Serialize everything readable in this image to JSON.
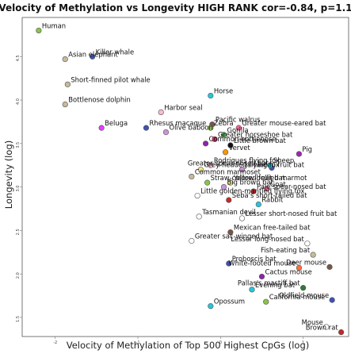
{
  "chart_data": {
    "type": "scatter",
    "title": "ALL Velocity of Methylation vs Longevity HIGH RANK cor=-0.84, p=1.1e-15",
    "xlabel": "Velocity of Methylation of Top 500 Highest CpGs (log)",
    "ylabel": "Longevity (log)",
    "xlim": [
      -2.4,
      1.55
    ],
    "ylim": [
      1.28,
      4.95
    ],
    "x_ticks": [
      -2,
      -1,
      0,
      1
    ],
    "y_ticks": [
      1.5,
      2.0,
      2.5,
      3.0,
      3.5,
      4.0,
      4.5
    ],
    "x_tick_labels": [
      "-2",
      "-1",
      "0",
      "1"
    ],
    "y_tick_labels": [
      "1.5",
      "2.0",
      "2.5",
      "3.0",
      "3.5",
      "4.0",
      "4.5"
    ],
    "grid": false,
    "points": [
      {
        "label": "Human",
        "x": -2.2,
        "y": 4.8,
        "color": "#8bc34a"
      },
      {
        "label": "Killer whale",
        "x": -1.55,
        "y": 4.5,
        "color": "#3f51b5"
      },
      {
        "label": "Asian elephant",
        "x": -1.88,
        "y": 4.47,
        "color": "#c8b99a"
      },
      {
        "label": "Short-finned pilot whale",
        "x": -1.85,
        "y": 4.18,
        "color": "#c8b99a"
      },
      {
        "label": "Bottlenose dolphin",
        "x": -1.88,
        "y": 3.95,
        "color": "#c8b99a"
      },
      {
        "label": "Horse",
        "x": -0.12,
        "y": 4.05,
        "color": "#26c6da"
      },
      {
        "label": "Harbor seal",
        "x": -0.72,
        "y": 3.86,
        "color": "#f8bbd0"
      },
      {
        "label": "Pacific walrus",
        "x": -0.1,
        "y": 3.72,
        "color": "#795548"
      },
      {
        "label": "Beluga",
        "x": -1.44,
        "y": 3.68,
        "color": "#e040fb"
      },
      {
        "label": "Rhesus macaque",
        "x": -0.9,
        "y": 3.68,
        "color": "#3f51b5"
      },
      {
        "label": "Zebra",
        "x": -0.12,
        "y": 3.68,
        "color": "#8bc34a"
      },
      {
        "label": "Greater mouse-eared bat",
        "x": 0.22,
        "y": 3.68,
        "color": "#f06292"
      },
      {
        "label": "Olive baboon",
        "x": -0.66,
        "y": 3.63,
        "color": "#ce93d8"
      },
      {
        "label": "Gorilla",
        "x": 0.04,
        "y": 3.6,
        "color": "#4caf50"
      },
      {
        "label": "Greater horseshoe bat",
        "x": -0.07,
        "y": 3.55,
        "color": "#e91e63"
      },
      {
        "label": "Common bottlenose",
        "x": -0.18,
        "y": 3.5,
        "color": "#8e24aa"
      },
      {
        "label": "Little brown bat",
        "x": 0.12,
        "y": 3.48,
        "color": "#111111"
      },
      {
        "label": "Vervet",
        "x": 0.06,
        "y": 3.4,
        "color": "#ff9800"
      },
      {
        "label": "Pig",
        "x": 0.95,
        "y": 3.38,
        "color": "#9c27b0"
      },
      {
        "label": "Rodrigues flying fox",
        "x": -0.12,
        "y": 3.25,
        "color": "#f8bbd0"
      },
      {
        "label": "Greater spear-nosed bat",
        "x": 0.62,
        "y": 3.22,
        "color": "#3f51b5"
      },
      {
        "label": "Sheep",
        "x": 0.6,
        "y": 3.25,
        "color": "#26c6da"
      },
      {
        "label": "Grey-headed flying fox",
        "x": -0.24,
        "y": 3.2,
        "color": "#f0e68c"
      },
      {
        "label": "Jamaican fruit bat",
        "x": 0.26,
        "y": 3.2,
        "color": "#ce93d8"
      },
      {
        "label": "Common marmoset",
        "x": -0.35,
        "y": 3.12,
        "color": "#c8b99a"
      },
      {
        "label": "Straw-colored fruit bat",
        "x": -0.16,
        "y": 3.05,
        "color": "#8bc34a"
      },
      {
        "label": "Big brown bat",
        "x": 0.04,
        "y": 3.0,
        "color": "#ce93d8"
      },
      {
        "label": "Yellow-bellied marmot",
        "x": 0.12,
        "y": 3.05,
        "color": "#f0e68c"
      },
      {
        "label": "Pale spear-nosed bat",
        "x": 0.4,
        "y": 2.95,
        "color": "#c62828"
      },
      {
        "label": "Goat",
        "x": 0.56,
        "y": 2.98,
        "color": "#f06292"
      },
      {
        "label": "Little golden-mantled flying fox",
        "x": -0.28,
        "y": 2.9,
        "color": "#ffffff"
      },
      {
        "label": "Seba's short-tailed bat",
        "x": 0.1,
        "y": 2.85,
        "color": "#c62828"
      },
      {
        "label": "Rabbit",
        "x": 0.46,
        "y": 2.8,
        "color": "#26c6da"
      },
      {
        "label": "Tasmanian devil",
        "x": -0.26,
        "y": 2.66,
        "color": "#ffffff"
      },
      {
        "label": "Lesser short-nosed fruit bat",
        "x": 0.26,
        "y": 2.64,
        "color": "#ffffff"
      },
      {
        "label": "Mexican free-tailed bat",
        "x": 0.12,
        "y": 2.48,
        "color": "#795548"
      },
      {
        "label": "Greater sac-winged bat",
        "x": -0.35,
        "y": 2.38,
        "color": "#ffffff"
      },
      {
        "label": "Lesser long-nosed bat",
        "x": 1.05,
        "y": 2.35,
        "color": "#ffffff"
      },
      {
        "label": "Fish-eating bat",
        "x": 1.12,
        "y": 2.22,
        "color": "#c8b99a"
      },
      {
        "label": "Proboscis bat",
        "x": 0.1,
        "y": 2.12,
        "color": "#3f51b5"
      },
      {
        "label": "Deer mouse",
        "x": 1.32,
        "y": 2.08,
        "color": "#795548"
      },
      {
        "label": "White-footed mouse",
        "x": 0.95,
        "y": 2.07,
        "color": "#ff7043"
      },
      {
        "label": "Cactus mouse",
        "x": 0.5,
        "y": 1.97,
        "color": "#8e24aa"
      },
      {
        "label": "Evening bat",
        "x": 0.38,
        "y": 1.82,
        "color": "#26c6da"
      },
      {
        "label": "Pallas's mastiff bat",
        "x": 1.0,
        "y": 1.84,
        "color": "#2e7d32"
      },
      {
        "label": "Opossum",
        "x": -0.12,
        "y": 1.63,
        "color": "#26c6da"
      },
      {
        "label": "California mouse",
        "x": 0.55,
        "y": 1.68,
        "color": "#8bc34a"
      },
      {
        "label": "Oldfield mouse",
        "x": 1.35,
        "y": 1.7,
        "color": "#3f51b5"
      },
      {
        "label": "Mouse",
        "x": 1.28,
        "y": 1.39,
        "color": "#ffffff"
      },
      {
        "label": "Brown rat",
        "x": 1.46,
        "y": 1.33,
        "color": "#c62828"
      }
    ]
  }
}
